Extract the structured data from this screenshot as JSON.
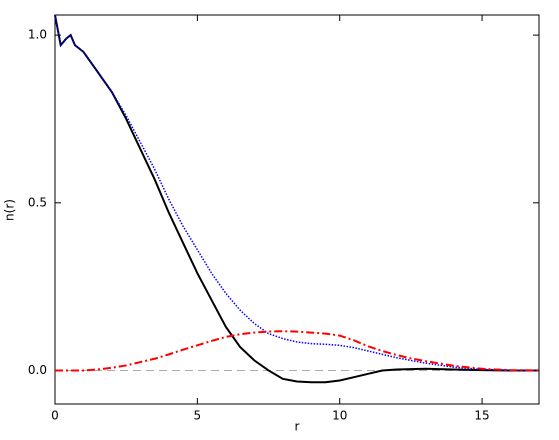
{
  "chart_data": {
    "type": "line",
    "x_label": "r",
    "y_label": "n(r)",
    "x": [
      0,
      0.2,
      0.4,
      0.55,
      0.7,
      1,
      1.5,
      2,
      2.5,
      3,
      3.5,
      4,
      4.5,
      5,
      5.5,
      6,
      6.5,
      7,
      7.5,
      8,
      8.5,
      9,
      9.5,
      10,
      10.5,
      11,
      11.5,
      12,
      12.5,
      13,
      14,
      15,
      16,
      17
    ],
    "series": [
      {
        "color": "#000000",
        "style": "solid",
        "values": [
          1.06,
          0.97,
          0.99,
          1.0,
          0.97,
          0.95,
          0.89,
          0.83,
          0.75,
          0.66,
          0.57,
          0.47,
          0.38,
          0.29,
          0.21,
          0.13,
          0.07,
          0.03,
          0.0,
          -0.025,
          -0.033,
          -0.035,
          -0.035,
          -0.03,
          -0.02,
          -0.01,
          0.0,
          0.003,
          0.004,
          0.005,
          0.003,
          0.001,
          0,
          0
        ]
      },
      {
        "color": "#0000ff",
        "style": "dotted",
        "values": [
          1.06,
          0.97,
          0.99,
          1.0,
          0.97,
          0.95,
          0.89,
          0.83,
          0.76,
          0.68,
          0.6,
          0.51,
          0.43,
          0.36,
          0.29,
          0.23,
          0.18,
          0.14,
          0.11,
          0.095,
          0.085,
          0.08,
          0.078,
          0.075,
          0.068,
          0.058,
          0.048,
          0.038,
          0.03,
          0.022,
          0.01,
          0.003,
          0.001,
          0
        ]
      },
      {
        "color": "#ff0000",
        "style": "dashdot",
        "values": [
          0,
          0,
          0,
          0,
          0,
          0,
          0.003,
          0.008,
          0.015,
          0.025,
          0.035,
          0.048,
          0.062,
          0.075,
          0.088,
          0.1,
          0.108,
          0.113,
          0.116,
          0.117,
          0.116,
          0.113,
          0.11,
          0.104,
          0.09,
          0.072,
          0.058,
          0.046,
          0.036,
          0.028,
          0.014,
          0.005,
          0.001,
          0
        ]
      }
    ],
    "xlim": [
      0,
      17
    ],
    "ylim": [
      -0.1,
      1.06
    ],
    "xticks": [
      0,
      5,
      10,
      15
    ],
    "yticks": [
      {
        "value": 0,
        "label": "0.0"
      },
      {
        "value": 0.5,
        "label": "0.5"
      },
      {
        "value": 1,
        "label": "1.0"
      }
    ],
    "zero_line": true
  }
}
